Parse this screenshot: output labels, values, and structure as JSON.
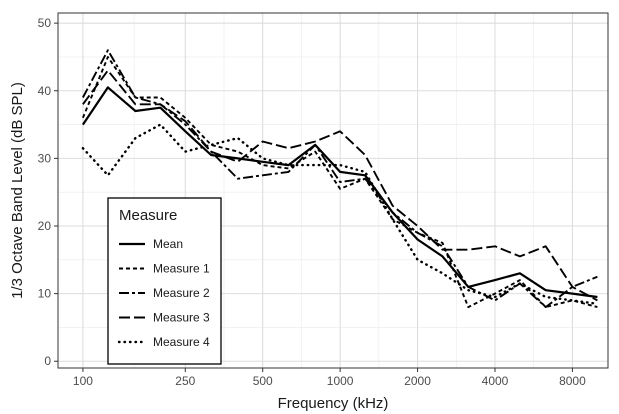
{
  "chart_data": {
    "type": "line",
    "xlabel": "Frequency (kHz)",
    "ylabel": "1/3 Octave Band Level (dB SPL)",
    "x_scale": "log",
    "xlim": [
      80,
      11000
    ],
    "ylim": [
      -1,
      51.5
    ],
    "x_ticks": [
      100,
      250,
      500,
      1000,
      2000,
      4000,
      8000
    ],
    "x_tick_labels": [
      "100",
      "250",
      "500",
      "1000",
      "2000",
      "4000",
      "8000"
    ],
    "y_ticks": [
      0,
      10,
      20,
      30,
      40,
      50
    ],
    "y_tick_labels": [
      "0",
      "10",
      "20",
      "30",
      "40",
      "50"
    ],
    "grid": true,
    "legend": {
      "title": "Measure",
      "placement": "bottom-left",
      "entries": [
        "Mean",
        "Measure 1",
        "Measure 2",
        "Measure 3",
        "Measure 4"
      ]
    },
    "x": [
      100,
      125,
      160,
      200,
      250,
      315,
      400,
      500,
      630,
      800,
      1000,
      1250,
      1600,
      2000,
      2500,
      3150,
      4000,
      5000,
      6300,
      8000,
      10000
    ],
    "series": [
      {
        "name": "Mean",
        "dash": "solid",
        "values": [
          35,
          40.5,
          37,
          37.5,
          34,
          30.5,
          30,
          29.5,
          29,
          32,
          28,
          27.5,
          22,
          18,
          15.5,
          11,
          12,
          13,
          10.5,
          10,
          9.5
        ]
      },
      {
        "name": "Measure 1",
        "dash": "short",
        "values": [
          36,
          45,
          39,
          39,
          36,
          32,
          31,
          29,
          28.5,
          31,
          25.5,
          27,
          21,
          19,
          17.5,
          8,
          10,
          12,
          8,
          9,
          8
        ]
      },
      {
        "name": "Measure 2",
        "dash": "longshort",
        "values": [
          39,
          46,
          39,
          38,
          35,
          31,
          27,
          27.5,
          28,
          32,
          26.5,
          27,
          22,
          19,
          17,
          11,
          9,
          11.5,
          8,
          11,
          12.5
        ]
      },
      {
        "name": "Measure 3",
        "dash": "long",
        "values": [
          38,
          43,
          38,
          38,
          35.5,
          31,
          29.5,
          32.5,
          31.5,
          32.5,
          34,
          30.5,
          23,
          20,
          16.5,
          16.5,
          17,
          15.5,
          17,
          11,
          9
        ]
      },
      {
        "name": "Measure 4",
        "dash": "dotted",
        "values": [
          31.5,
          27.5,
          33,
          35,
          31,
          32,
          33,
          30,
          29,
          29,
          29,
          28,
          21,
          15,
          13,
          10.5,
          9.5,
          11.5,
          9.5,
          9,
          8.5
        ]
      }
    ]
  }
}
